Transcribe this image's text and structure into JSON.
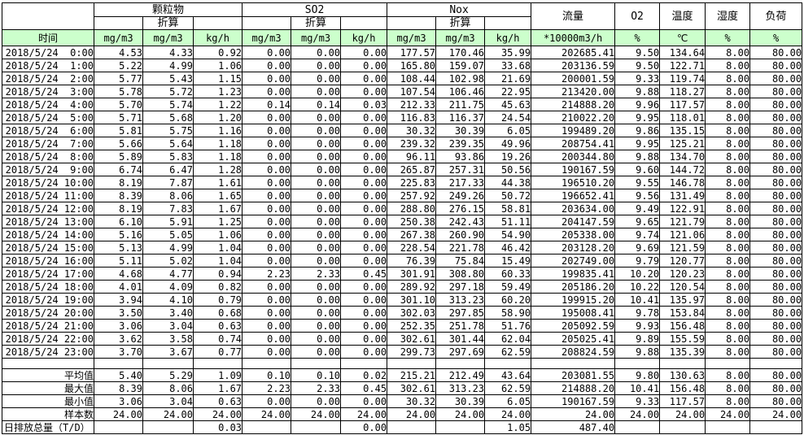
{
  "table": {
    "time_header": "时间",
    "groups": [
      {
        "label": "颗粒物",
        "sub": "折算"
      },
      {
        "label": "SO2",
        "sub": "折算"
      },
      {
        "label": "Nox",
        "sub": "折算"
      }
    ],
    "singles": [
      {
        "label": "流量"
      },
      {
        "label": "O2"
      },
      {
        "label": "温度"
      },
      {
        "label": "湿度"
      },
      {
        "label": "负荷"
      }
    ],
    "units": [
      "mg/m3",
      "mg/m3",
      "kg/h",
      "mg/m3",
      "mg/m3",
      "kg/h",
      "mg/m3",
      "mg/m3",
      "kg/h",
      "*10000m3/h",
      "%",
      "℃",
      "%",
      "%"
    ],
    "colors": {
      "header_green": "#ccffcc",
      "border": "#000000"
    },
    "rows": [
      {
        "time": "2018/5/24  0:00",
        "values": [
          "4.53",
          "4.33",
          "0.92",
          "0.00",
          "0.00",
          "0.00",
          "177.57",
          "170.46",
          "35.99",
          "202685.41",
          "9.50",
          "134.64",
          "8.00",
          "80.00"
        ]
      },
      {
        "time": "2018/5/24  1:00",
        "values": [
          "5.22",
          "4.99",
          "1.06",
          "0.00",
          "0.00",
          "0.00",
          "165.80",
          "159.07",
          "33.68",
          "203136.59",
          "9.50",
          "122.71",
          "8.00",
          "80.00"
        ]
      },
      {
        "time": "2018/5/24  2:00",
        "values": [
          "5.77",
          "5.43",
          "1.15",
          "0.00",
          "0.00",
          "0.00",
          "108.44",
          "102.98",
          "21.69",
          "200001.59",
          "9.33",
          "119.74",
          "8.00",
          "80.00"
        ]
      },
      {
        "time": "2018/5/24  3:00",
        "values": [
          "5.78",
          "5.72",
          "1.23",
          "0.00",
          "0.00",
          "0.00",
          "107.54",
          "106.46",
          "22.95",
          "213420.00",
          "9.88",
          "118.27",
          "8.00",
          "80.00"
        ]
      },
      {
        "time": "2018/5/24  4:00",
        "values": [
          "5.70",
          "5.74",
          "1.22",
          "0.14",
          "0.14",
          "0.03",
          "212.33",
          "211.75",
          "45.63",
          "214888.20",
          "9.96",
          "117.57",
          "8.00",
          "80.00"
        ]
      },
      {
        "time": "2018/5/24  5:00",
        "values": [
          "5.71",
          "5.68",
          "1.20",
          "0.00",
          "0.00",
          "0.00",
          "116.83",
          "116.37",
          "24.54",
          "210022.20",
          "9.95",
          "118.01",
          "8.00",
          "80.00"
        ]
      },
      {
        "time": "2018/5/24  6:00",
        "values": [
          "5.81",
          "5.75",
          "1.16",
          "0.00",
          "0.00",
          "0.00",
          "30.32",
          "30.39",
          "6.05",
          "199489.20",
          "9.86",
          "135.15",
          "8.00",
          "80.00"
        ]
      },
      {
        "time": "2018/5/24  7:00",
        "values": [
          "5.66",
          "5.64",
          "1.18",
          "0.00",
          "0.00",
          "0.00",
          "239.32",
          "239.35",
          "49.96",
          "208754.41",
          "9.95",
          "125.21",
          "8.00",
          "80.00"
        ]
      },
      {
        "time": "2018/5/24  8:00",
        "values": [
          "5.89",
          "5.83",
          "1.18",
          "0.00",
          "0.00",
          "0.00",
          "96.11",
          "93.86",
          "19.26",
          "200344.80",
          "9.88",
          "134.70",
          "8.00",
          "80.00"
        ]
      },
      {
        "time": "2018/5/24  9:00",
        "values": [
          "6.74",
          "6.47",
          "1.28",
          "0.00",
          "0.00",
          "0.00",
          "265.87",
          "257.31",
          "50.56",
          "190167.59",
          "9.60",
          "144.72",
          "8.00",
          "80.00"
        ]
      },
      {
        "time": "2018/5/24 10:00",
        "values": [
          "8.19",
          "7.87",
          "1.61",
          "0.00",
          "0.00",
          "0.00",
          "225.83",
          "217.33",
          "44.38",
          "196510.20",
          "9.55",
          "146.78",
          "8.00",
          "80.00"
        ]
      },
      {
        "time": "2018/5/24 11:00",
        "values": [
          "8.39",
          "8.06",
          "1.65",
          "0.00",
          "0.00",
          "0.00",
          "257.92",
          "249.26",
          "50.72",
          "196652.41",
          "9.56",
          "131.49",
          "8.00",
          "80.00"
        ]
      },
      {
        "time": "2018/5/24 12:00",
        "values": [
          "8.19",
          "7.83",
          "1.67",
          "0.00",
          "0.00",
          "0.00",
          "288.80",
          "276.15",
          "58.81",
          "203634.00",
          "9.49",
          "122.91",
          "8.00",
          "80.00"
        ]
      },
      {
        "time": "2018/5/24 13:00",
        "values": [
          "6.10",
          "5.91",
          "1.25",
          "0.00",
          "0.00",
          "0.00",
          "250.38",
          "242.43",
          "51.11",
          "204147.59",
          "9.65",
          "121.79",
          "8.00",
          "80.00"
        ]
      },
      {
        "time": "2018/5/24 14:00",
        "values": [
          "5.16",
          "5.05",
          "1.06",
          "0.00",
          "0.00",
          "0.00",
          "267.38",
          "260.90",
          "54.90",
          "205338.00",
          "9.74",
          "121.06",
          "8.00",
          "80.00"
        ]
      },
      {
        "time": "2018/5/24 15:00",
        "values": [
          "5.13",
          "4.99",
          "1.04",
          "0.00",
          "0.00",
          "0.00",
          "228.54",
          "221.78",
          "46.42",
          "203128.20",
          "9.69",
          "121.59",
          "8.00",
          "80.00"
        ]
      },
      {
        "time": "2018/5/24 16:00",
        "values": [
          "5.11",
          "5.02",
          "1.04",
          "0.00",
          "0.00",
          "0.00",
          "76.39",
          "75.84",
          "15.49",
          "202749.00",
          "9.79",
          "120.77",
          "8.00",
          "80.00"
        ]
      },
      {
        "time": "2018/5/24 17:00",
        "values": [
          "4.68",
          "4.77",
          "0.94",
          "2.23",
          "2.33",
          "0.45",
          "301.91",
          "308.80",
          "60.33",
          "199835.41",
          "10.20",
          "120.23",
          "8.00",
          "80.00"
        ]
      },
      {
        "time": "2018/5/24 18:00",
        "values": [
          "4.01",
          "4.09",
          "0.82",
          "0.00",
          "0.00",
          "0.00",
          "289.92",
          "297.18",
          "59.49",
          "205186.20",
          "10.22",
          "120.54",
          "8.00",
          "80.00"
        ]
      },
      {
        "time": "2018/5/24 19:00",
        "values": [
          "3.94",
          "4.10",
          "0.79",
          "0.00",
          "0.00",
          "0.00",
          "301.10",
          "313.23",
          "60.20",
          "199915.20",
          "10.41",
          "135.97",
          "8.00",
          "80.00"
        ]
      },
      {
        "time": "2018/5/24 20:00",
        "values": [
          "3.50",
          "3.40",
          "0.68",
          "0.00",
          "0.00",
          "0.00",
          "302.03",
          "297.85",
          "58.90",
          "195008.41",
          "9.78",
          "153.84",
          "8.00",
          "80.00"
        ]
      },
      {
        "time": "2018/5/24 21:00",
        "values": [
          "3.06",
          "3.04",
          "0.63",
          "0.00",
          "0.00",
          "0.00",
          "252.35",
          "251.78",
          "51.76",
          "205092.59",
          "9.93",
          "156.48",
          "8.00",
          "80.00"
        ]
      },
      {
        "time": "2018/5/24 22:00",
        "values": [
          "3.62",
          "3.58",
          "0.74",
          "0.00",
          "0.00",
          "0.00",
          "302.61",
          "301.44",
          "62.04",
          "205025.41",
          "9.89",
          "155.59",
          "8.00",
          "80.00"
        ]
      },
      {
        "time": "2018/5/24 23:00",
        "values": [
          "3.70",
          "3.67",
          "0.77",
          "0.00",
          "0.00",
          "0.00",
          "299.73",
          "297.69",
          "62.59",
          "208824.59",
          "9.88",
          "135.39",
          "8.00",
          "80.00"
        ]
      }
    ],
    "summary": [
      {
        "label": "平均值",
        "values": [
          "5.40",
          "5.29",
          "1.09",
          "0.10",
          "0.10",
          "0.02",
          "215.21",
          "212.49",
          "43.64",
          "203081.55",
          "9.80",
          "130.63",
          "8.00",
          "80.00"
        ]
      },
      {
        "label": "最大值",
        "values": [
          "8.39",
          "8.06",
          "1.67",
          "2.23",
          "2.33",
          "0.45",
          "302.61",
          "313.23",
          "62.59",
          "214888.20",
          "10.41",
          "156.48",
          "8.00",
          "80.00"
        ]
      },
      {
        "label": "最小值",
        "values": [
          "3.06",
          "3.04",
          "0.63",
          "0.00",
          "0.00",
          "0.00",
          "30.32",
          "30.39",
          "6.05",
          "190167.59",
          "9.33",
          "117.57",
          "8.00",
          "80.00"
        ]
      },
      {
        "label": "样本数",
        "values": [
          "24.00",
          "24.00",
          "24.00",
          "24.00",
          "24.00",
          "24.00",
          "24.00",
          "24.00",
          "24.00",
          "24.00",
          "24.00",
          "24.00",
          "24.00",
          "24.00"
        ]
      },
      {
        "label": "日排放总量（T/D）",
        "values": [
          "",
          "",
          "0.03",
          "",
          "",
          "0.00",
          "",
          "",
          "1.05",
          "487.40",
          "",
          "",
          "",
          ""
        ]
      }
    ]
  }
}
